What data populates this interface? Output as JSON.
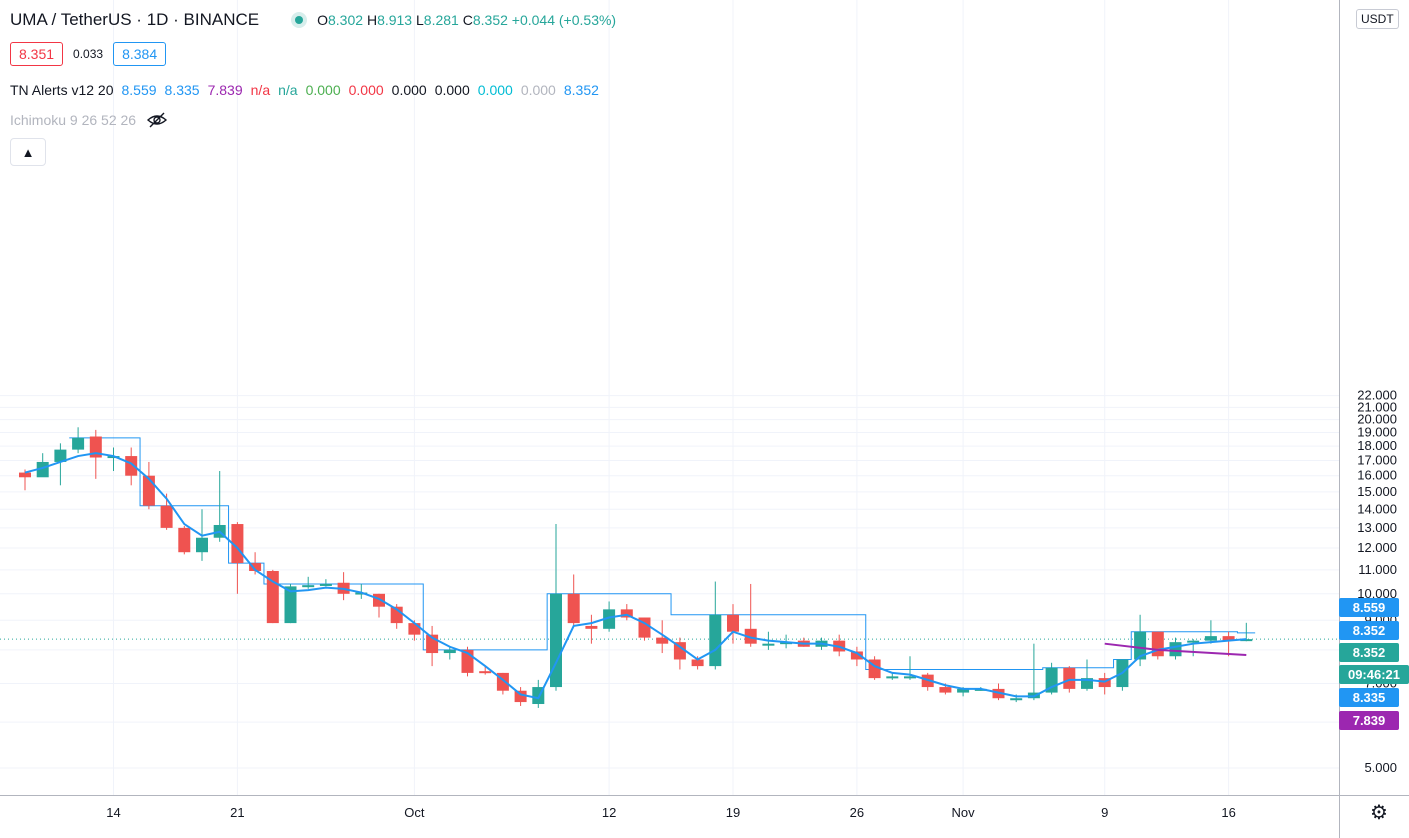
{
  "header": {
    "symbol": "UMA / TetherUS",
    "interval": "1D",
    "exchange": "BINANCE",
    "open_label": "O",
    "open": "8.302",
    "high_label": "H",
    "high": "8.913",
    "low_label": "L",
    "low": "8.281",
    "close_label": "C",
    "close": "8.352",
    "change": "+0.044 (+0.53%)"
  },
  "quote": {
    "bid": "8.351",
    "spread": "0.033",
    "ask": "8.384"
  },
  "indicator": {
    "name": "TN Alerts v12 20",
    "values": [
      "8.559",
      "8.335",
      "7.839",
      "n/a",
      "n/a",
      "0.000",
      "0.000",
      "0.000",
      "0.000",
      "0.000",
      "0.000",
      "8.352"
    ],
    "colors": [
      "#2196f3",
      "#2196f3",
      "#9c27b0",
      "#f23645",
      "#26a69a",
      "#4caf50",
      "#f23645",
      "#131722",
      "#131722",
      "#00bcd4",
      "#b2b5be",
      "#2196f3"
    ]
  },
  "ichimoku": {
    "label": "Ichimoku 9 26 52 26"
  },
  "currency": "USDT",
  "colors": {
    "up": "#26a69a",
    "down": "#ef5350",
    "line": "#2196f3",
    "purple": "#9c27b0",
    "grid": "#f0f3fa"
  },
  "price_tags": [
    {
      "text": "8.559",
      "value": 8.559,
      "color": "#2196f3"
    },
    {
      "text": "8.352",
      "value": 8.352,
      "color": "#2196f3"
    },
    {
      "text": "8.352",
      "value": 8.352,
      "color": "#26a69a"
    },
    {
      "text": "09:46:21",
      "value": 8.352,
      "color": "#26a69a"
    },
    {
      "text": "8.335",
      "value": 8.335,
      "color": "#2196f3"
    },
    {
      "text": "7.839",
      "value": 7.839,
      "color": "#9c27b0"
    }
  ],
  "chart_data": {
    "type": "candlestick",
    "y_ticks": [
      "5.000",
      "6.000",
      "7.000",
      "8.000",
      "9.000",
      "10.000",
      "11.000",
      "12.000",
      "13.000",
      "14.000",
      "15.000",
      "16.000",
      "17.000",
      "18.000",
      "19.000",
      "20.000",
      "21.000",
      "22.000"
    ],
    "ylim": [
      5.0,
      22.0
    ],
    "y_scale": "log",
    "x_ticks": [
      {
        "label": "14",
        "index": 5
      },
      {
        "label": "21",
        "index": 12
      },
      {
        "label": "Oct",
        "index": 22
      },
      {
        "label": "12",
        "index": 33
      },
      {
        "label": "19",
        "index": 40
      },
      {
        "label": "26",
        "index": 47
      },
      {
        "label": "Nov",
        "index": 53
      },
      {
        "label": "9",
        "index": 61
      },
      {
        "label": "16",
        "index": 68
      }
    ],
    "candles": [
      [
        16.2,
        16.4,
        15.1,
        15.9
      ],
      [
        15.9,
        17.5,
        16.0,
        16.9
      ],
      [
        16.9,
        18.2,
        15.4,
        17.75
      ],
      [
        17.75,
        19.4,
        17.5,
        18.6
      ],
      [
        18.7,
        19.2,
        15.8,
        17.2
      ],
      [
        17.2,
        17.9,
        16.3,
        17.3
      ],
      [
        17.3,
        17.9,
        15.4,
        16.0
      ],
      [
        16.0,
        16.9,
        14.0,
        14.2
      ],
      [
        14.2,
        14.9,
        12.9,
        13.0
      ],
      [
        13.0,
        13.1,
        11.7,
        11.8
      ],
      [
        11.8,
        14.0,
        11.4,
        12.5
      ],
      [
        12.5,
        16.3,
        12.3,
        13.15
      ],
      [
        13.2,
        13.3,
        10.0,
        11.3
      ],
      [
        11.3,
        11.8,
        10.8,
        10.95
      ],
      [
        10.95,
        11.0,
        8.9,
        8.9
      ],
      [
        8.9,
        10.4,
        8.9,
        10.3
      ],
      [
        10.3,
        10.7,
        10.2,
        10.35
      ],
      [
        10.35,
        10.6,
        10.3,
        10.4
      ],
      [
        10.45,
        10.9,
        9.75,
        10.0
      ],
      [
        10.0,
        10.4,
        9.8,
        10.05
      ],
      [
        10.0,
        10.0,
        9.1,
        9.5
      ],
      [
        9.5,
        9.6,
        8.7,
        8.9
      ],
      [
        8.9,
        9.0,
        8.3,
        8.5
      ],
      [
        8.5,
        8.8,
        7.5,
        7.9
      ],
      [
        7.9,
        8.1,
        7.7,
        8.0
      ],
      [
        8.0,
        8.1,
        7.2,
        7.3
      ],
      [
        7.35,
        7.5,
        7.25,
        7.3
      ],
      [
        7.3,
        7.3,
        6.7,
        6.8
      ],
      [
        6.8,
        6.9,
        6.4,
        6.5
      ],
      [
        6.45,
        7.1,
        6.35,
        6.9
      ],
      [
        6.9,
        13.2,
        6.8,
        10.0
      ],
      [
        10.0,
        10.8,
        8.8,
        8.9
      ],
      [
        8.8,
        9.2,
        8.2,
        8.7
      ],
      [
        8.7,
        9.7,
        8.6,
        9.4
      ],
      [
        9.4,
        9.6,
        9.0,
        9.1
      ],
      [
        9.1,
        9.1,
        8.3,
        8.4
      ],
      [
        8.4,
        9.0,
        7.9,
        8.2
      ],
      [
        8.25,
        8.4,
        7.4,
        7.7
      ],
      [
        7.7,
        7.8,
        7.4,
        7.5
      ],
      [
        7.5,
        10.5,
        7.4,
        9.2
      ],
      [
        9.2,
        9.6,
        8.2,
        8.6
      ],
      [
        8.7,
        10.4,
        8.1,
        8.2
      ],
      [
        8.2,
        8.6,
        8.0,
        8.2
      ],
      [
        8.2,
        8.5,
        8.05,
        8.25
      ],
      [
        8.3,
        8.4,
        8.1,
        8.1
      ],
      [
        8.1,
        8.4,
        8.0,
        8.3
      ],
      [
        8.3,
        8.5,
        7.8,
        7.95
      ],
      [
        7.95,
        8.1,
        7.5,
        7.7
      ],
      [
        7.7,
        7.8,
        7.1,
        7.15
      ],
      [
        7.15,
        7.3,
        7.1,
        7.2
      ],
      [
        7.2,
        7.8,
        7.1,
        7.2
      ],
      [
        7.25,
        7.3,
        6.8,
        6.9
      ],
      [
        6.9,
        7.0,
        6.7,
        6.75
      ],
      [
        6.75,
        6.9,
        6.65,
        6.85
      ],
      [
        6.85,
        6.9,
        6.8,
        6.85
      ],
      [
        6.85,
        7.0,
        6.55,
        6.6
      ],
      [
        6.6,
        6.7,
        6.5,
        6.6
      ],
      [
        6.6,
        8.2,
        6.55,
        6.75
      ],
      [
        6.75,
        7.6,
        6.7,
        7.45
      ],
      [
        7.45,
        7.5,
        6.75,
        6.85
      ],
      [
        6.85,
        7.7,
        6.8,
        7.15
      ],
      [
        7.15,
        7.3,
        6.7,
        6.9
      ],
      [
        6.9,
        7.6,
        6.8,
        7.7
      ],
      [
        7.7,
        9.2,
        7.5,
        8.6
      ],
      [
        8.6,
        8.6,
        7.7,
        7.8
      ],
      [
        7.8,
        8.4,
        7.7,
        8.25
      ],
      [
        8.25,
        8.35,
        7.8,
        8.3
      ],
      [
        8.3,
        9.0,
        8.2,
        8.45
      ],
      [
        8.45,
        8.6,
        7.8,
        8.3
      ],
      [
        8.3,
        8.91,
        8.28,
        8.35
      ]
    ],
    "ma_line": [
      16.2,
      16.5,
      16.9,
      17.3,
      17.5,
      17.3,
      16.8,
      15.8,
      14.6,
      13.2,
      12.6,
      12.8,
      12.0,
      11.0,
      10.5,
      10.1,
      10.15,
      10.25,
      10.2,
      10.05,
      9.8,
      9.4,
      8.9,
      8.4,
      8.1,
      7.9,
      7.5,
      7.1,
      6.7,
      6.6,
      7.6,
      8.8,
      8.9,
      9.1,
      9.2,
      8.9,
      8.5,
      8.1,
      7.7,
      8.0,
      8.6,
      8.4,
      8.3,
      8.25,
      8.2,
      8.2,
      8.1,
      7.9,
      7.5,
      7.3,
      7.25,
      7.1,
      6.95,
      6.85,
      6.85,
      6.75,
      6.65,
      6.65,
      6.9,
      7.1,
      7.1,
      7.05,
      7.3,
      7.8,
      8.0,
      8.1,
      8.2,
      8.25,
      8.3,
      8.35
    ],
    "stepped_line": [
      null,
      null,
      null,
      18.6,
      18.6,
      18.6,
      18.6,
      14.2,
      14.2,
      14.2,
      14.2,
      14.2,
      11.3,
      11.3,
      10.4,
      10.4,
      10.4,
      10.4,
      10.4,
      10.4,
      10.4,
      10.4,
      10.4,
      8.0,
      8.0,
      8.0,
      8.0,
      8.0,
      8.0,
      8.0,
      10.0,
      10.0,
      10.0,
      10.0,
      10.0,
      10.0,
      10.0,
      9.2,
      9.2,
      9.2,
      9.2,
      9.2,
      9.2,
      9.2,
      9.2,
      9.2,
      9.2,
      9.2,
      7.4,
      7.4,
      7.4,
      7.4,
      7.4,
      7.4,
      7.4,
      7.4,
      7.4,
      7.4,
      7.45,
      7.45,
      7.45,
      7.45,
      7.7,
      8.6,
      8.6,
      8.6,
      8.6,
      8.6,
      8.6,
      8.56
    ],
    "purple_line": [
      [
        61,
        8.2
      ],
      [
        64,
        8.0
      ],
      [
        69,
        7.84
      ]
    ],
    "last_price": 8.352
  }
}
